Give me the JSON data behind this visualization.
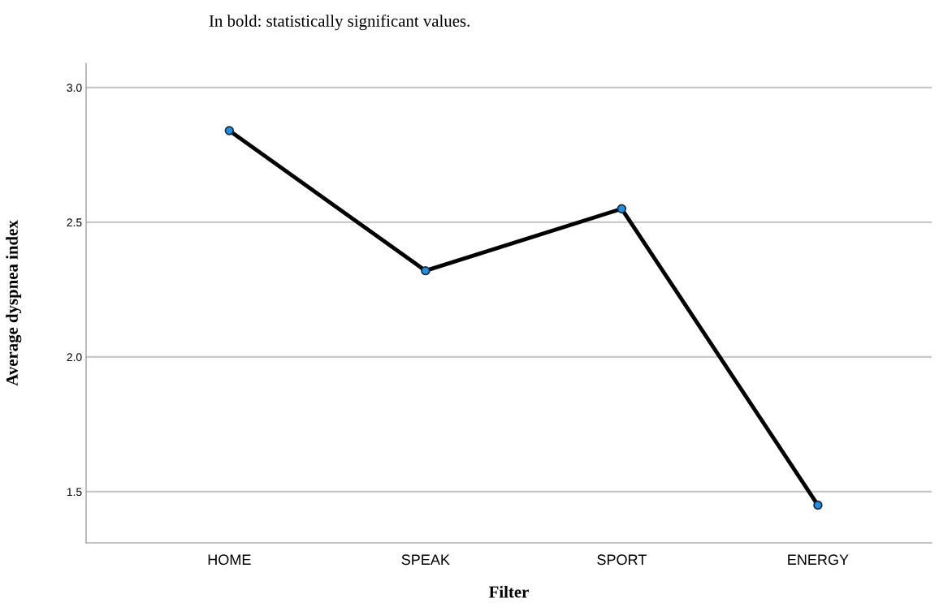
{
  "chart_data": {
    "type": "line",
    "xlabel": "Filter",
    "ylabel": "Average dyspnea index",
    "annotations": [
      "In bold: statistically significant values."
    ],
    "categories": [
      "HOME",
      "SPEAK",
      "SPORT",
      "ENERGY"
    ],
    "series": [
      {
        "color": "#000000",
        "values": [
          2.84,
          2.32,
          2.55,
          1.45
        ]
      }
    ],
    "ylim": [
      1.31,
      3.09
    ],
    "yticks": [
      {
        "value": 1.5,
        "label": "1.5"
      },
      {
        "value": 2.0,
        "label": "2.0"
      },
      {
        "value": 2.5,
        "label": "2.5"
      },
      {
        "value": 3.0,
        "label": "3.0"
      }
    ],
    "grid": "y",
    "marker": "circle",
    "line_style": "solid",
    "legend": false
  }
}
